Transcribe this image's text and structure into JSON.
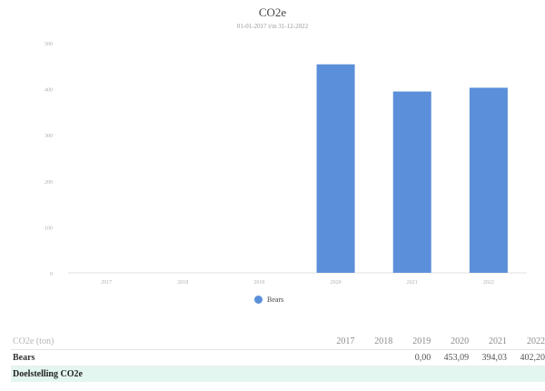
{
  "chart_data": {
    "type": "bar",
    "title": "CO2e",
    "subtitle": "01-01-2017 t/m 31-12-2022",
    "ylabel": "",
    "xlabel": "",
    "categories": [
      "2017",
      "2018",
      "2019",
      "2020",
      "2021",
      "2022"
    ],
    "series": [
      {
        "name": "Bears",
        "values": [
          0,
          0,
          0,
          453.09,
          394.03,
          402.2
        ],
        "color": "#5b8fd9"
      }
    ],
    "ylim": [
      0,
      500
    ],
    "yticks": [
      0,
      100,
      200,
      300,
      400,
      500
    ],
    "grid": false,
    "legend_position": "bottom"
  },
  "table": {
    "header_label": "CO2e (ton)",
    "years": [
      "2017",
      "2018",
      "2019",
      "2020",
      "2021",
      "2022"
    ],
    "rows": [
      {
        "label": "Bears",
        "values": [
          "",
          "",
          "0,00",
          "453,09",
          "394,03",
          "402,20"
        ]
      },
      {
        "label": "Doelstelling CO2e",
        "values": [
          "",
          "",
          "",
          "",
          "",
          ""
        ]
      }
    ]
  }
}
